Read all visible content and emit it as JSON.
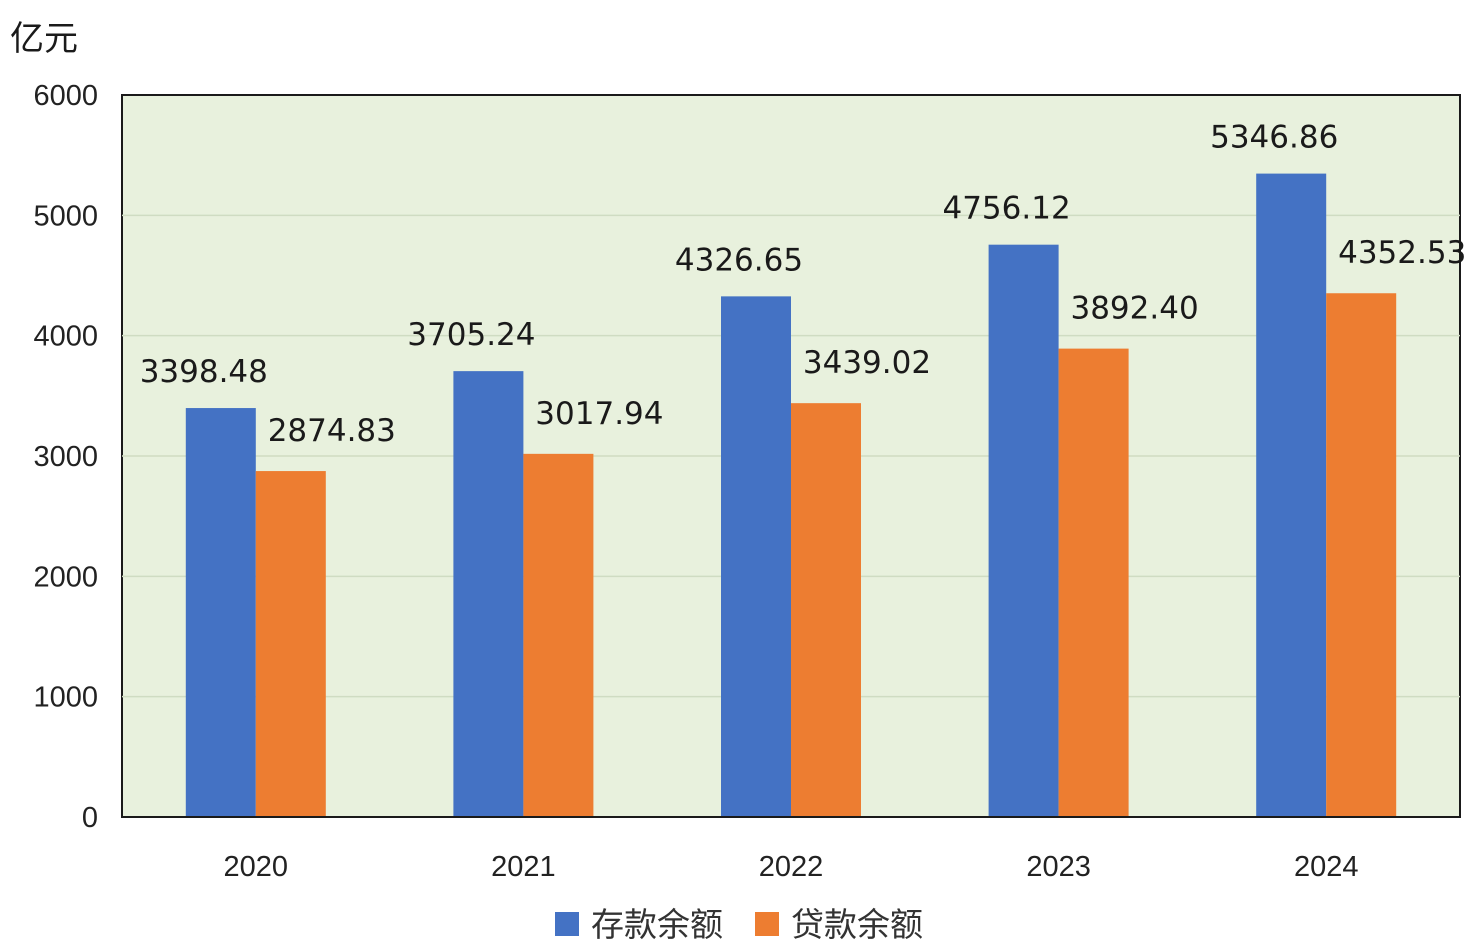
{
  "chart_data": {
    "type": "bar",
    "unit_label": "亿元",
    "categories": [
      "2020",
      "2021",
      "2022",
      "2023",
      "2024"
    ],
    "series": [
      {
        "name": "存款余额",
        "color": "#4472C4",
        "values": [
          3398.48,
          3705.24,
          4326.65,
          4756.12,
          5346.86
        ]
      },
      {
        "name": "贷款余额",
        "color": "#ED7D31",
        "values": [
          2874.83,
          3017.94,
          3439.02,
          3892.4,
          4352.53
        ]
      }
    ],
    "data_labels": [
      [
        "3398.48",
        "3705.24",
        "4326.65",
        "4756.12",
        "5346.86"
      ],
      [
        "2874.83",
        "3017.94",
        "3439.02",
        "3892.40",
        "4352.53"
      ]
    ],
    "ylim": [
      0,
      6000
    ],
    "yticks": [
      "0",
      "1000",
      "2000",
      "3000",
      "4000",
      "5000",
      "6000"
    ],
    "grid": true,
    "plot_background": "#E8F1DD",
    "legend_position": "bottom-center"
  }
}
